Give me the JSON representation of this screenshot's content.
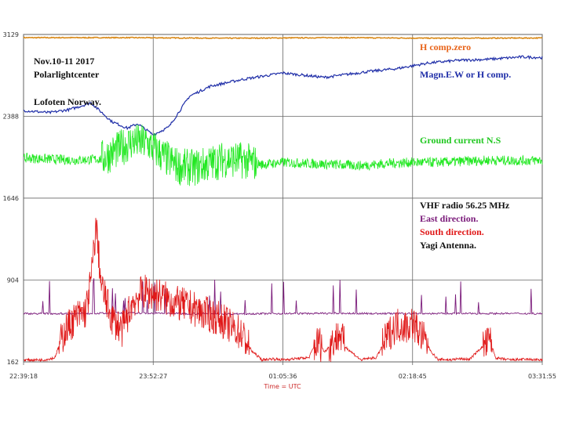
{
  "chart_data": {
    "type": "line",
    "title": "",
    "xlabel": "Time = UTC",
    "ylabel": "",
    "grid": true,
    "x_ticks": [
      "22:39:18",
      "23:52:27",
      "01:05:36",
      "02:18:45",
      "03:31:55"
    ],
    "y_ticks": [
      3129,
      2388,
      1646,
      904,
      162
    ],
    "ylim": [
      162,
      3129
    ],
    "annotations": {
      "date": "Nov.10-11 2017",
      "place1": "Polarlightcenter",
      "place2": "Lofoten Norway.",
      "h_zero": "H comp.zero",
      "magn": "Magn.E.W or H comp.",
      "ground": "Ground current N.S",
      "vhf": "VHF radio 56.25 MHz",
      "east": "East direction.",
      "south": "South direction.",
      "yagi": "Yagi Antenna."
    },
    "series": [
      {
        "name": "H comp.zero",
        "color": "#d98a1a",
        "x": [
          0,
          20,
          40,
          60,
          80,
          100
        ],
        "values": [
          3100,
          3100,
          3095,
          3100,
          3095,
          3097
        ]
      },
      {
        "name": "Magn.E.W or H comp.",
        "color": "#1f2ea8",
        "x": [
          0,
          5,
          9,
          13,
          17,
          20,
          22,
          25,
          28,
          32,
          36,
          42,
          50,
          58,
          66,
          72,
          78,
          84,
          90,
          96,
          100
        ],
        "values": [
          2440,
          2420,
          2450,
          2510,
          2340,
          2280,
          2320,
          2220,
          2290,
          2570,
          2660,
          2720,
          2780,
          2740,
          2790,
          2820,
          2870,
          2895,
          2905,
          2925,
          2920
        ]
      },
      {
        "name": "Ground current N.S",
        "color": "#22e822",
        "x": [
          0,
          5,
          10,
          15,
          18,
          21,
          24,
          27,
          30,
          33,
          36,
          39,
          42,
          46,
          50,
          55,
          60,
          65,
          70,
          75,
          80,
          85,
          90,
          95,
          100
        ],
        "values": [
          2010,
          2000,
          1990,
          2000,
          2080,
          2160,
          2140,
          2020,
          1930,
          1920,
          1960,
          2000,
          1990,
          1950,
          1970,
          1960,
          1950,
          1940,
          1960,
          1970,
          1970,
          1980,
          1990,
          1985,
          1990
        ]
      },
      {
        "name": "East direction.",
        "color": "#7a1a7a",
        "x": [
          0,
          10,
          20,
          30,
          40,
          50,
          60,
          70,
          80,
          90,
          100
        ],
        "values": [
          600,
          600,
          605,
          600,
          598,
          600,
          602,
          600,
          600,
          601,
          600
        ]
      },
      {
        "name": "South direction.",
        "color": "#e01818",
        "x": [
          0,
          4,
          6,
          8,
          10,
          12,
          13,
          14,
          15,
          17,
          19,
          21,
          23,
          26,
          29,
          32,
          35,
          38,
          40,
          42,
          44,
          46,
          48,
          50,
          52,
          55,
          56,
          57,
          58,
          61,
          62,
          64,
          65,
          66,
          68,
          70,
          71,
          72,
          74,
          75,
          76,
          77,
          78,
          79,
          80,
          81,
          82,
          84,
          86,
          88,
          90,
          91,
          92,
          94,
          96,
          100
        ],
        "values": [
          180,
          180,
          200,
          450,
          560,
          620,
          900,
          1400,
          850,
          560,
          450,
          700,
          800,
          770,
          700,
          660,
          600,
          550,
          480,
          420,
          260,
          180,
          190,
          180,
          190,
          200,
          300,
          350,
          250,
          420,
          300,
          220,
          180,
          190,
          200,
          380,
          450,
          500,
          480,
          520,
          450,
          380,
          300,
          230,
          180,
          185,
          180,
          190,
          185,
          280,
          350,
          200,
          190,
          180,
          185,
          180
        ]
      }
    ]
  }
}
